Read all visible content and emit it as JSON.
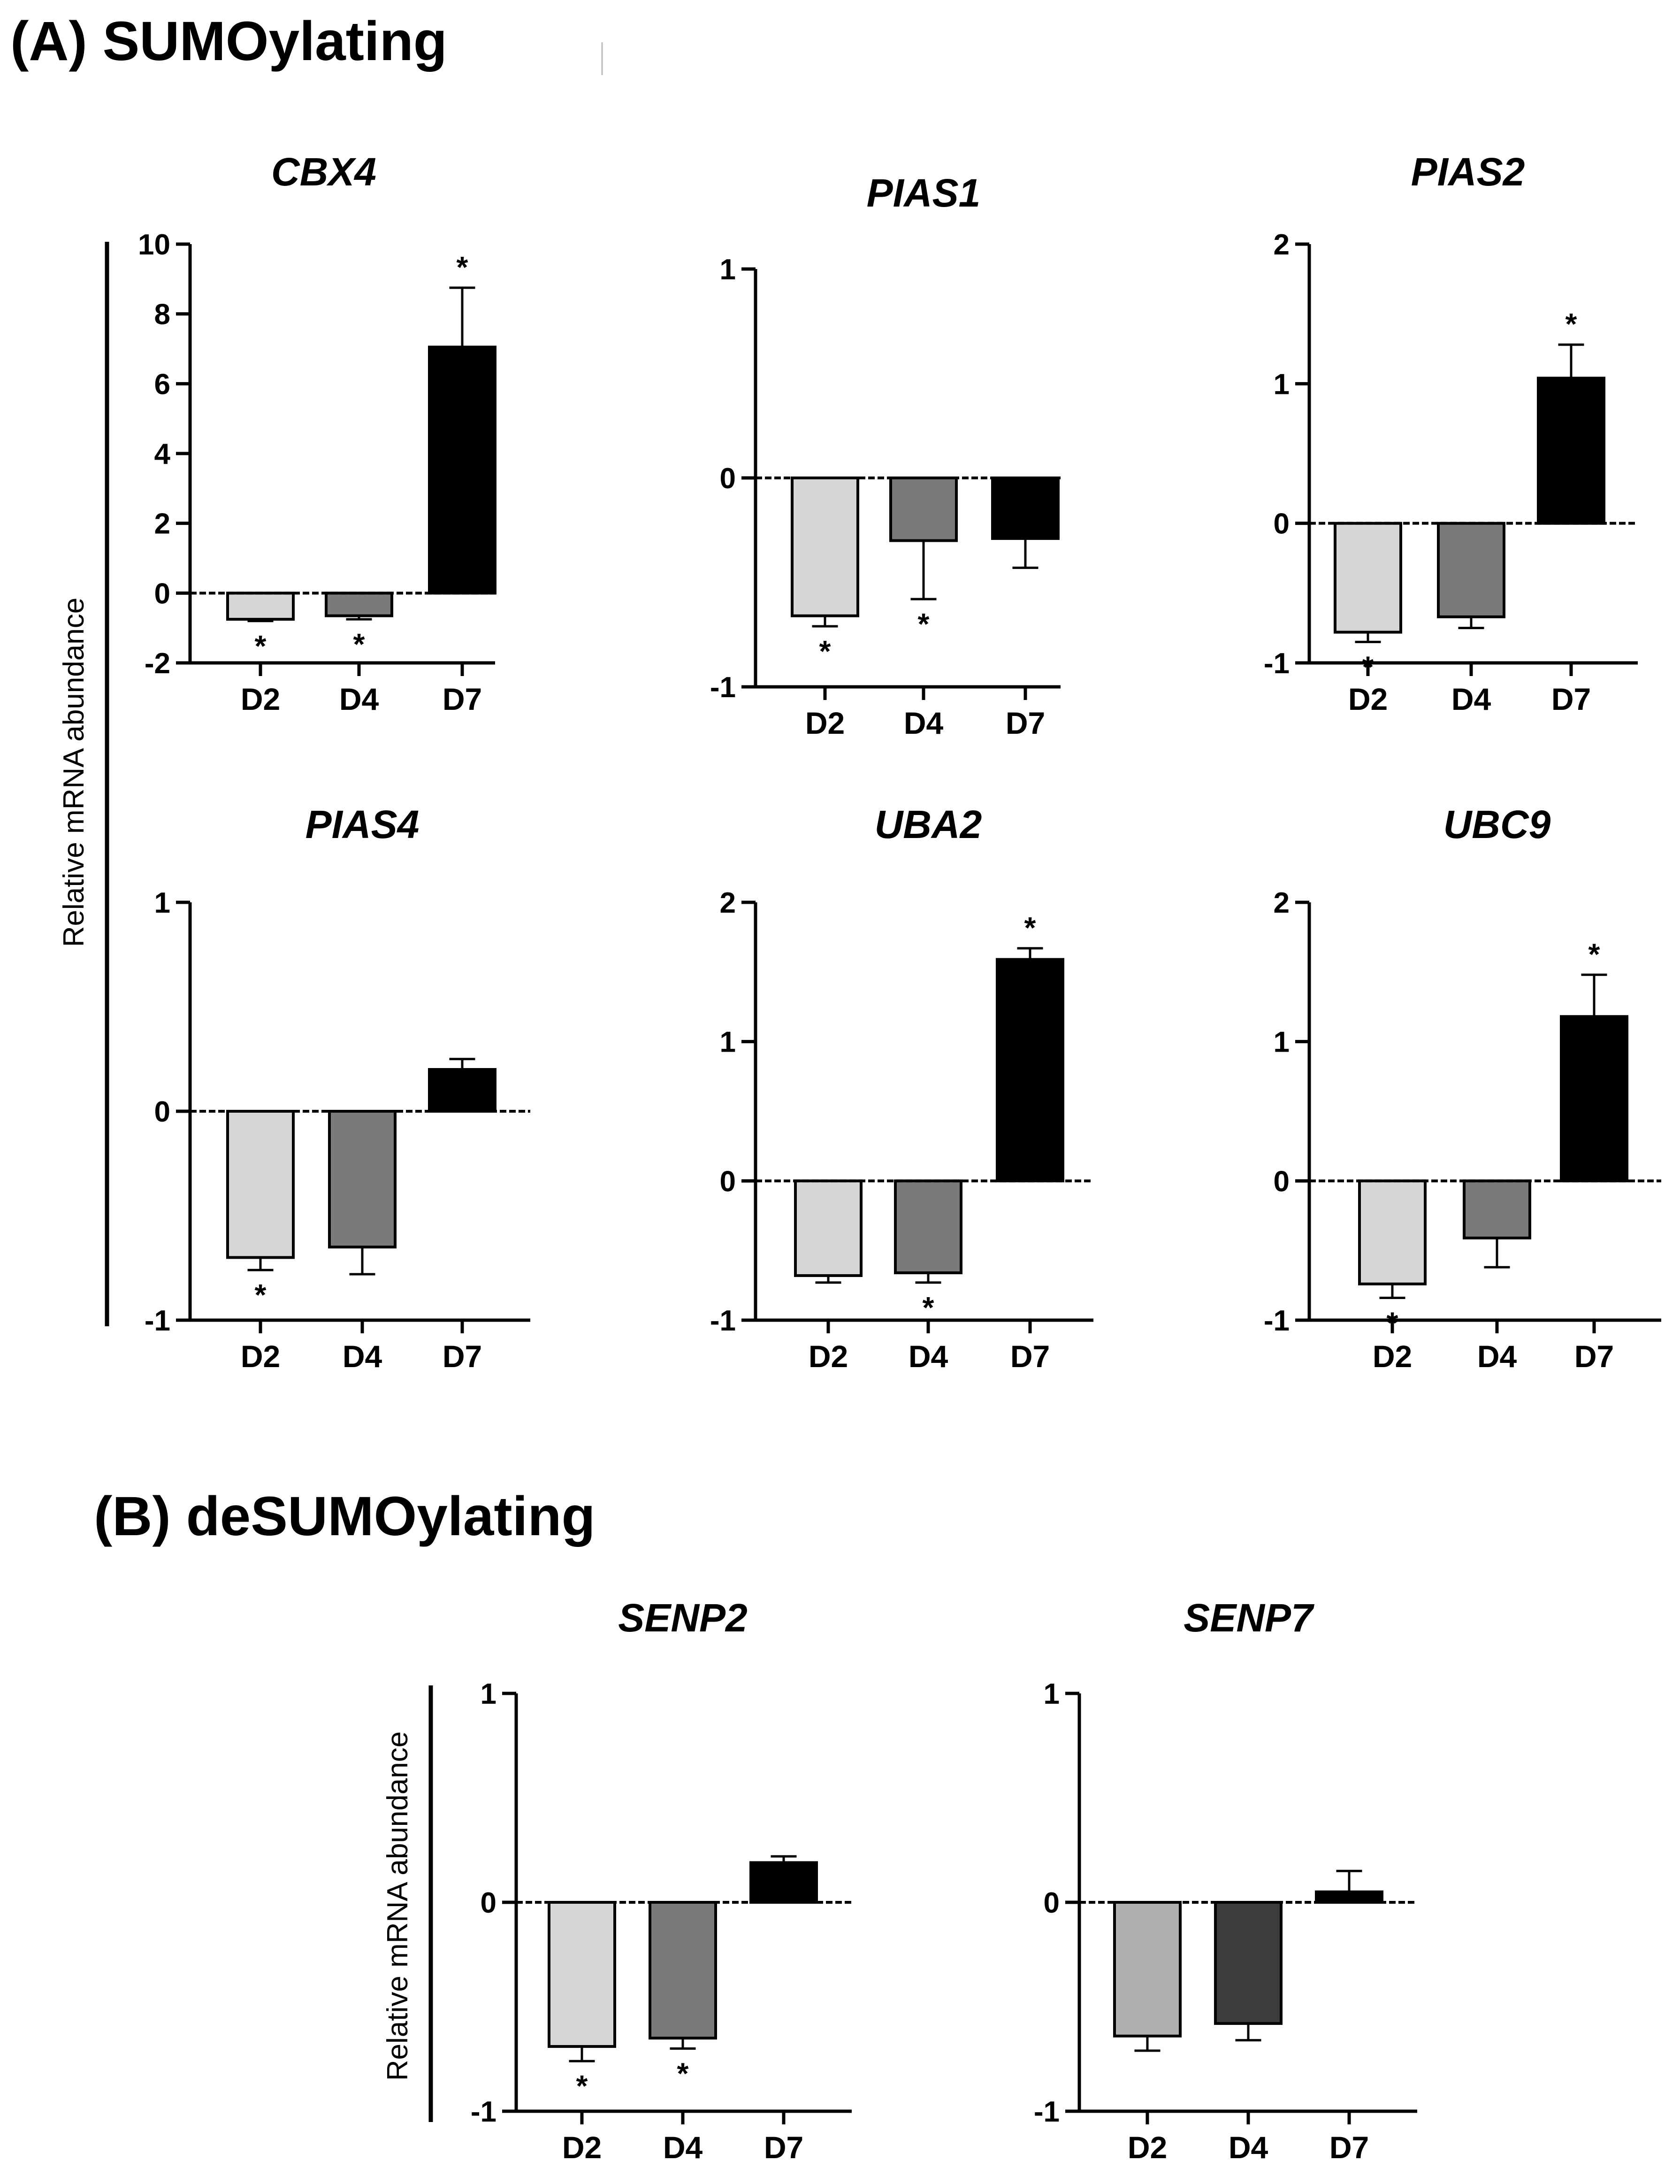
{
  "sections": {
    "a_title": "(A) SUMOylating",
    "b_title": "(B) deSUMOylating"
  },
  "y_axis_label": "Relative mRNA abundance",
  "colors": {
    "D2": "#d6d6d6",
    "D4": "#7a7a7a",
    "D7": "#000000",
    "D2_senp7": "#b0b0b0",
    "D4_senp7": "#3c3c3c"
  },
  "chart_data": [
    {
      "id": "cbx4",
      "type": "bar",
      "title": "CBX4",
      "section": "A",
      "categories": [
        "D2",
        "D4",
        "D7"
      ],
      "values": [
        -0.75,
        -0.65,
        7.05
      ],
      "errors": [
        0.05,
        0.1,
        1.7
      ],
      "significant": [
        true,
        true,
        true
      ],
      "ylim": [
        -2,
        10
      ],
      "yticks": [
        "-2",
        "0",
        "2",
        "4",
        "6",
        "8",
        "10"
      ]
    },
    {
      "id": "pias1",
      "type": "bar",
      "title": "PIAS1",
      "section": "A",
      "categories": [
        "D2",
        "D4",
        "D7"
      ],
      "values": [
        -0.66,
        -0.3,
        -0.29
      ],
      "errors": [
        0.05,
        0.28,
        0.14
      ],
      "significant": [
        true,
        true,
        false
      ],
      "ylim": [
        -1,
        1
      ],
      "yticks": [
        "-1",
        "0",
        "1"
      ]
    },
    {
      "id": "pias2",
      "type": "bar",
      "title": "PIAS2",
      "section": "A",
      "categories": [
        "D2",
        "D4",
        "D7"
      ],
      "values": [
        -0.78,
        -0.67,
        1.04
      ],
      "errors": [
        0.07,
        0.08,
        0.24
      ],
      "significant": [
        true,
        false,
        true
      ],
      "ylim": [
        -1,
        2
      ],
      "yticks": [
        "-1",
        "0",
        "1",
        "2"
      ]
    },
    {
      "id": "pias4",
      "type": "bar",
      "title": "PIAS4",
      "section": "A",
      "categories": [
        "D2",
        "D4",
        "D7"
      ],
      "values": [
        -0.7,
        -0.65,
        0.2
      ],
      "errors": [
        0.06,
        0.13,
        0.05
      ],
      "significant": [
        true,
        false,
        false
      ],
      "ylim": [
        -1,
        1
      ],
      "yticks": [
        "-1",
        "0",
        "1"
      ]
    },
    {
      "id": "uba2",
      "type": "bar",
      "title": "UBA2",
      "section": "A",
      "categories": [
        "D2",
        "D4",
        "D7"
      ],
      "values": [
        -0.68,
        -0.66,
        1.59
      ],
      "errors": [
        0.05,
        0.07,
        0.08
      ],
      "significant": [
        false,
        true,
        true
      ],
      "ylim": [
        -1,
        2
      ],
      "yticks": [
        "-1",
        "0",
        "1",
        "2"
      ]
    },
    {
      "id": "ubc9",
      "type": "bar",
      "title": "UBC9",
      "section": "A",
      "categories": [
        "D2",
        "D4",
        "D7"
      ],
      "values": [
        -0.74,
        -0.41,
        1.18
      ],
      "errors": [
        0.1,
        0.21,
        0.3
      ],
      "significant": [
        true,
        false,
        true
      ],
      "ylim": [
        -1,
        2
      ],
      "yticks": [
        "-1",
        "0",
        "1",
        "2"
      ]
    },
    {
      "id": "senp2",
      "type": "bar",
      "title": "SENP2",
      "section": "B",
      "categories": [
        "D2",
        "D4",
        "D7"
      ],
      "values": [
        -0.69,
        -0.65,
        0.19
      ],
      "errors": [
        0.07,
        0.05,
        0.03
      ],
      "significant": [
        true,
        true,
        false
      ],
      "ylim": [
        -1,
        1
      ],
      "yticks": [
        "-1",
        "0",
        "1"
      ]
    },
    {
      "id": "senp7",
      "type": "bar",
      "title": "SENP7",
      "section": "B",
      "categories": [
        "D2",
        "D4",
        "D7"
      ],
      "values": [
        -0.64,
        -0.58,
        0.05
      ],
      "errors": [
        0.07,
        0.08,
        0.1
      ],
      "significant": [
        false,
        false,
        false
      ],
      "ylim": [
        -1,
        1
      ],
      "yticks": [
        "-1",
        "0",
        "1"
      ]
    }
  ]
}
